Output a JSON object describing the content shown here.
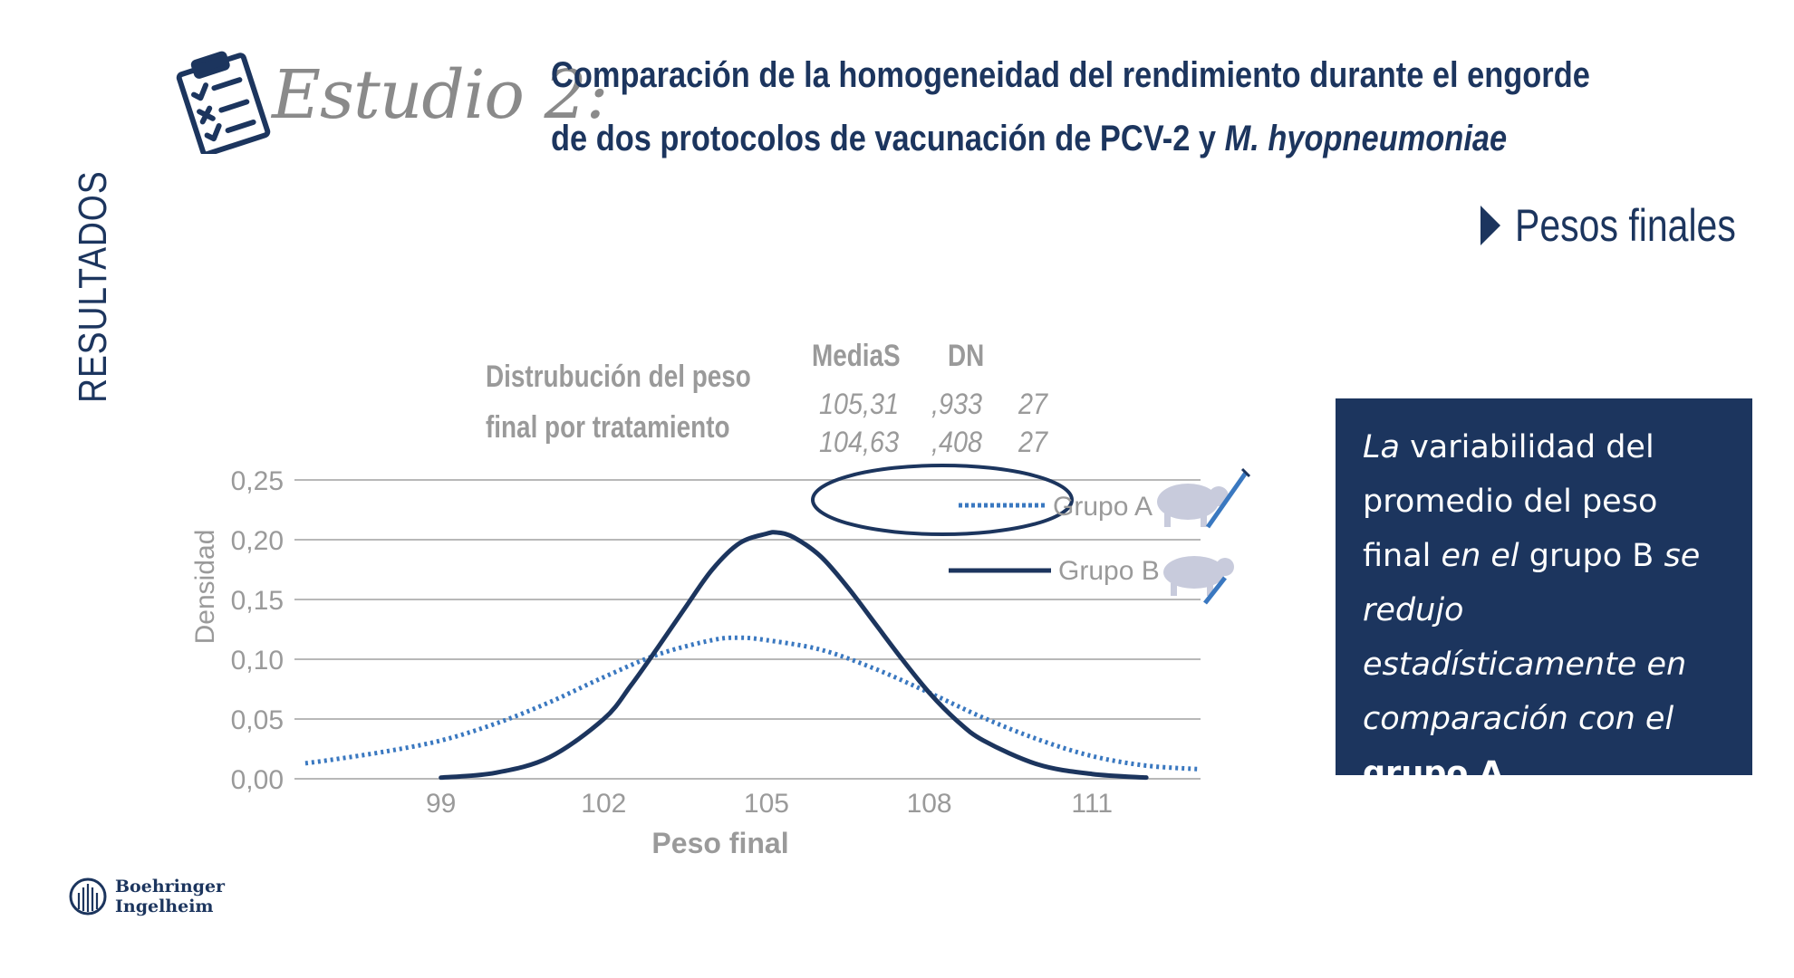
{
  "header": {
    "study_label": "Estudio 2:",
    "title_line1": "Comparación de la homogeneidad del rendimiento durante el engorde",
    "title_line2_plain": "de dos protocolos de vacunación de PCV-2 y ",
    "title_line2_italic": "M. hyopneumoniae"
  },
  "side_label": "RESULTADOS",
  "section_heading": "Pesos finales",
  "stats": {
    "title_line1": "Distrubución del peso",
    "title_line2": "final por tratamiento",
    "col_mean": "MediaS",
    "col_sd": "DN",
    "rows": [
      {
        "mean": "105,31",
        "sd": ",933",
        "n": "27"
      },
      {
        "mean": "104,63",
        "sd": ",408",
        "n": "27"
      }
    ]
  },
  "conclusion": {
    "p1_italic": "La",
    "p1_plain": " variabilidad del promedio del peso final ",
    "p2_italic": "en el",
    "p2_plain": " grupo B ",
    "p3_italic": "se redujo estadísticamente en comparación con el",
    "p4_bold": "grupo A",
    "p4_end": "."
  },
  "logo": {
    "line1": "Boehringer",
    "line2": "Ingelheim"
  },
  "colors": {
    "navy": "#1c355e",
    "blue_dotted": "#3a78c0",
    "grey": "#9a9a9a"
  },
  "icons": {
    "clipboard": "clipboard-checklist-icon",
    "pig": "pig-syringe-icon",
    "arrow": "play-icon"
  },
  "chart_data": {
    "type": "line",
    "xlabel": "Peso final",
    "ylabel": "Densidad",
    "xlim": [
      96.3,
      113.0
    ],
    "ylim": [
      0,
      0.25
    ],
    "x_ticks": [
      99,
      102,
      105,
      108,
      111
    ],
    "x_tick_labels": [
      "99",
      "102",
      "105",
      "108",
      "111"
    ],
    "y_ticks": [
      0,
      0.05,
      0.1,
      0.15,
      0.2,
      0.25
    ],
    "y_tick_labels": [
      "0,00",
      "0,05",
      "0,10",
      "0,15",
      "0,20",
      "0,25"
    ],
    "grid": true,
    "legend_position": "top-right",
    "series": [
      {
        "name": "Grupo A",
        "style": "dotted",
        "color": "#3a78c0",
        "x": [
          96.5,
          97,
          98,
          99,
          100,
          101,
          102,
          103,
          104,
          104.5,
          105,
          106,
          107,
          108,
          109,
          110,
          111,
          112,
          113
        ],
        "y": [
          0.013,
          0.016,
          0.023,
          0.032,
          0.046,
          0.064,
          0.085,
          0.104,
          0.116,
          0.118,
          0.116,
          0.108,
          0.092,
          0.072,
          0.051,
          0.033,
          0.019,
          0.011,
          0.008
        ]
      },
      {
        "name": "Grupo B",
        "style": "solid",
        "color": "#1c355e",
        "x": [
          99,
          100,
          101,
          102,
          102.5,
          103,
          103.5,
          104,
          104.5,
          105,
          105.2,
          105.5,
          106,
          106.5,
          107,
          107.5,
          108,
          108.5,
          109,
          110,
          111,
          112
        ],
        "y": [
          0.001,
          0.005,
          0.018,
          0.05,
          0.078,
          0.11,
          0.143,
          0.175,
          0.197,
          0.205,
          0.206,
          0.202,
          0.186,
          0.16,
          0.13,
          0.1,
          0.072,
          0.049,
          0.032,
          0.012,
          0.004,
          0.001
        ]
      }
    ]
  }
}
